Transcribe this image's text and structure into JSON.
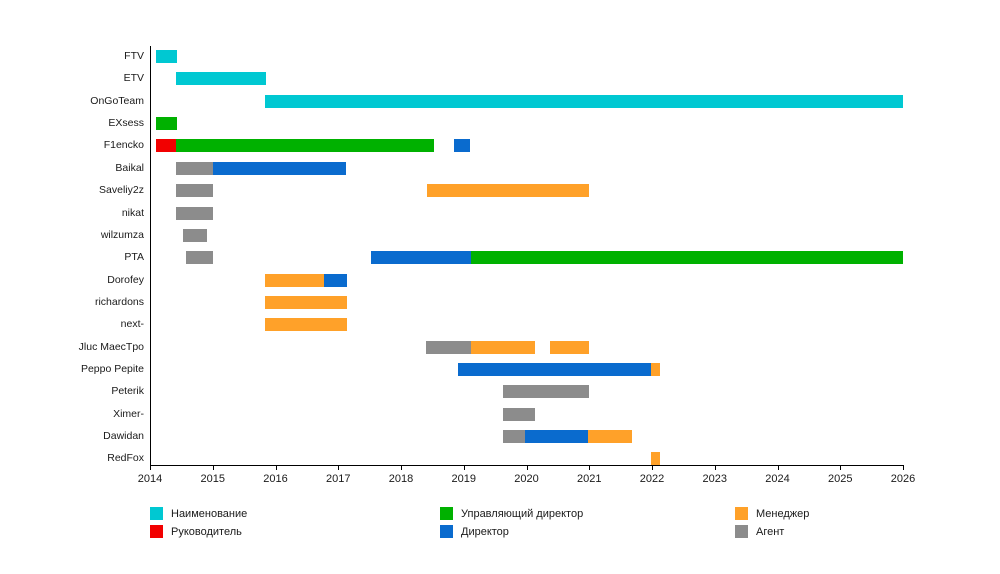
{
  "chart_data": {
    "type": "gantt",
    "title": "",
    "x_axis": {
      "min": 2014,
      "max": 2026,
      "tick_labels": [
        "2014",
        "2015",
        "2016",
        "2017",
        "2018",
        "2019",
        "2020",
        "2021",
        "2022",
        "2023",
        "2024",
        "2025",
        "2026"
      ]
    },
    "legend_position": "bottom",
    "grid": false,
    "legend": [
      {
        "key": "name",
        "label": "Наименование",
        "color": "#00c8d2"
      },
      {
        "key": "head",
        "label": "Руководитель",
        "color": "#f20000"
      },
      {
        "key": "md",
        "label": "Управляющий директор",
        "color": "#00b100"
      },
      {
        "key": "director",
        "label": "Директор",
        "color": "#0a6bce"
      },
      {
        "key": "manager",
        "label": "Менеджер",
        "color": "#ffa129"
      },
      {
        "key": "agent",
        "label": "Агент",
        "color": "#8c8c8c"
      }
    ],
    "rows": [
      {
        "name": "FTV",
        "segments": [
          {
            "role": "name",
            "start": 2014.1,
            "end": 2014.43
          }
        ]
      },
      {
        "name": "ETV",
        "segments": [
          {
            "role": "name",
            "start": 2014.41,
            "end": 2015.85
          }
        ]
      },
      {
        "name": "OnGoTeam",
        "segments": [
          {
            "role": "name",
            "start": 2015.83,
            "end": 2026.0
          }
        ]
      },
      {
        "name": "EXsess",
        "segments": [
          {
            "role": "md",
            "start": 2014.1,
            "end": 2014.43
          }
        ]
      },
      {
        "name": "F1encko",
        "segments": [
          {
            "role": "head",
            "start": 2014.1,
            "end": 2014.41
          },
          {
            "role": "md",
            "start": 2014.41,
            "end": 2018.52
          },
          {
            "role": "director",
            "start": 2018.85,
            "end": 2019.1
          }
        ]
      },
      {
        "name": "Baikal",
        "segments": [
          {
            "role": "agent",
            "start": 2014.41,
            "end": 2015.0
          },
          {
            "role": "director",
            "start": 2015.0,
            "end": 2017.13
          }
        ]
      },
      {
        "name": "Saveliy2z",
        "segments": [
          {
            "role": "agent",
            "start": 2014.41,
            "end": 2015.01
          },
          {
            "role": "manager",
            "start": 2018.41,
            "end": 2021.0
          }
        ]
      },
      {
        "name": "nikat",
        "segments": [
          {
            "role": "agent",
            "start": 2014.41,
            "end": 2015.01
          }
        ]
      },
      {
        "name": "wilzumza",
        "segments": [
          {
            "role": "agent",
            "start": 2014.53,
            "end": 2014.91
          }
        ]
      },
      {
        "name": "PTA",
        "segments": [
          {
            "role": "agent",
            "start": 2014.57,
            "end": 2015.0
          },
          {
            "role": "director",
            "start": 2017.52,
            "end": 2019.11
          },
          {
            "role": "md",
            "start": 2019.11,
            "end": 2026.0
          }
        ]
      },
      {
        "name": "Dorofey",
        "segments": [
          {
            "role": "manager",
            "start": 2015.83,
            "end": 2016.77
          },
          {
            "role": "director",
            "start": 2016.77,
            "end": 2017.14
          }
        ]
      },
      {
        "name": "richardons",
        "segments": [
          {
            "role": "manager",
            "start": 2015.83,
            "end": 2017.14
          }
        ]
      },
      {
        "name": "next-",
        "segments": [
          {
            "role": "manager",
            "start": 2015.83,
            "end": 2017.14
          }
        ]
      },
      {
        "name": "Jluc MaecTpo",
        "segments": [
          {
            "role": "agent",
            "start": 2018.4,
            "end": 2019.11
          },
          {
            "role": "manager",
            "start": 2019.11,
            "end": 2020.13
          },
          {
            "role": "manager",
            "start": 2020.37,
            "end": 2021.0
          }
        ]
      },
      {
        "name": "Peppo Pepite",
        "segments": [
          {
            "role": "director",
            "start": 2018.91,
            "end": 2021.99
          },
          {
            "role": "manager",
            "start": 2021.99,
            "end": 2022.12
          }
        ]
      },
      {
        "name": "Peterik",
        "segments": [
          {
            "role": "agent",
            "start": 2019.62,
            "end": 2021.0
          }
        ]
      },
      {
        "name": "Ximer-",
        "segments": [
          {
            "role": "agent",
            "start": 2019.62,
            "end": 2020.13
          }
        ]
      },
      {
        "name": "Dawidan",
        "segments": [
          {
            "role": "agent",
            "start": 2019.62,
            "end": 2019.97
          },
          {
            "role": "director",
            "start": 2019.97,
            "end": 2020.98
          },
          {
            "role": "manager",
            "start": 2020.98,
            "end": 2021.68
          }
        ]
      },
      {
        "name": "RedFox",
        "segments": [
          {
            "role": "manager",
            "start": 2021.99,
            "end": 2022.12
          }
        ]
      }
    ]
  }
}
